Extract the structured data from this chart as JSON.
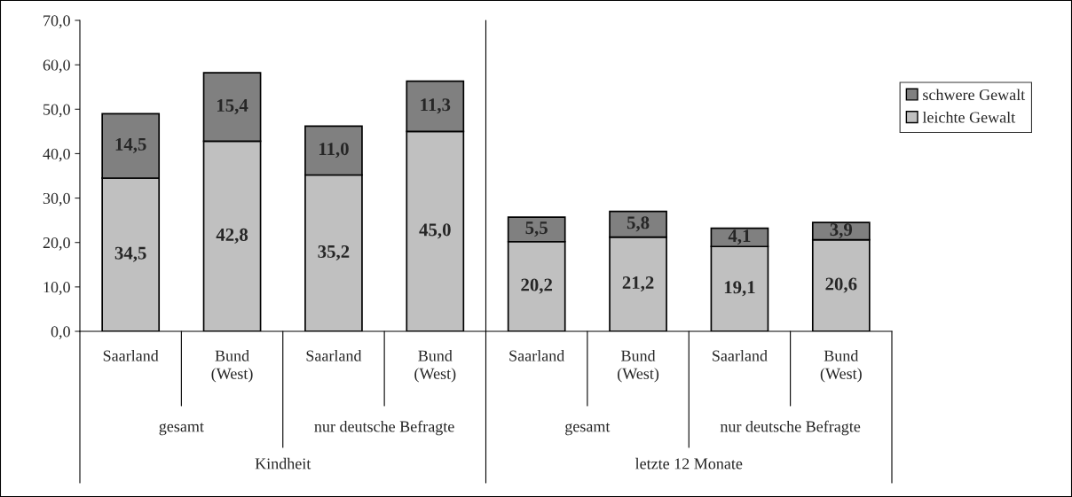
{
  "chart_data": {
    "type": "bar",
    "stacked": true,
    "categories": [
      "Saarland",
      "Bund\n(West)",
      "Saarland",
      "Bund\n(West)",
      "Saarland",
      "Bund\n(West)",
      "Saarland",
      "Bund\n(West)"
    ],
    "series": [
      {
        "name": "leichte Gewalt",
        "color": "#c0c0c0",
        "values": [
          34.5,
          42.8,
          35.2,
          45.0,
          20.2,
          21.2,
          19.1,
          20.6
        ],
        "value_labels": [
          "34,5",
          "42,8",
          "35,2",
          "45,0",
          "20,2",
          "21,2",
          "19,1",
          "20,6"
        ]
      },
      {
        "name": "schwere Gewalt",
        "color": "#808080",
        "values": [
          14.5,
          15.4,
          11.0,
          11.3,
          5.5,
          5.8,
          4.1,
          3.9
        ],
        "value_labels": [
          "14,5",
          "15,4",
          "11,0",
          "11,3",
          "5,5",
          "5,8",
          "4,1",
          "3,9"
        ]
      }
    ],
    "annotations": [
      "gesamt",
      "nur deutsche Befragte",
      "gesamt",
      "nur deutsche Befragte",
      "Kindheit",
      "letzte 12 Monate"
    ],
    "ylim": [
      0,
      70
    ],
    "yticks": [
      {
        "value": 0,
        "label": "0,0"
      },
      {
        "value": 10,
        "label": "10,0"
      },
      {
        "value": 20,
        "label": "20,0"
      },
      {
        "value": 30,
        "label": "30,0"
      },
      {
        "value": 40,
        "label": "40,0"
      },
      {
        "value": 50,
        "label": "50,0"
      },
      {
        "value": 60,
        "label": "60,0"
      },
      {
        "value": 70,
        "label": "70,0"
      }
    ],
    "grid": false,
    "legend": "right"
  }
}
